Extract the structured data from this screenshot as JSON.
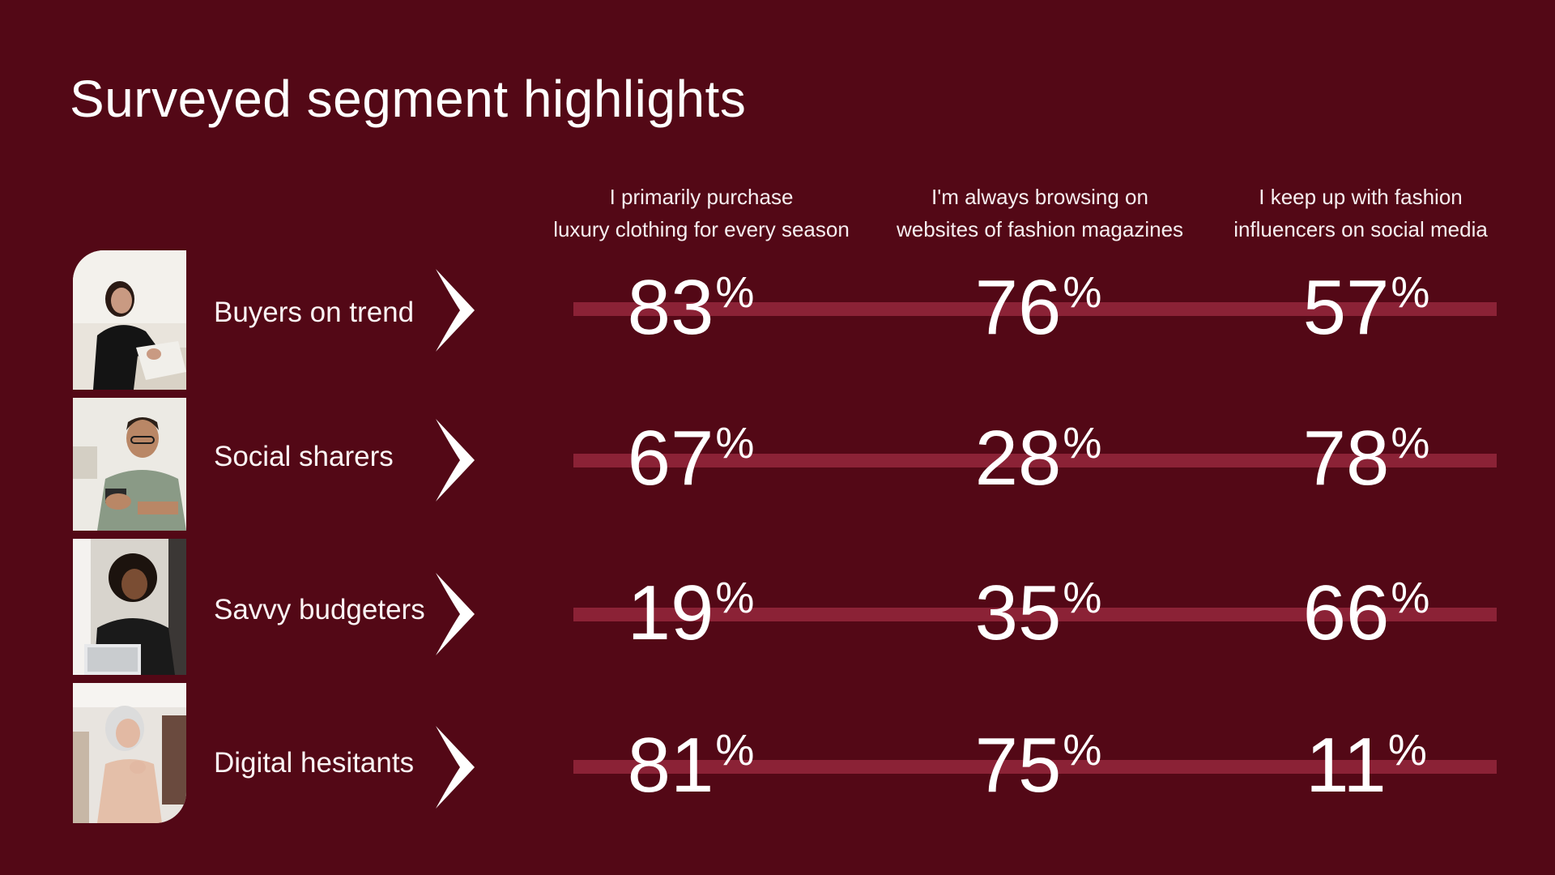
{
  "title": "Surveyed segment highlights",
  "columns": [
    {
      "line1": "I primarily purchase",
      "line2": "luxury clothing for every season"
    },
    {
      "line1": "I'm always browsing on",
      "line2": "websites of fashion magazines"
    },
    {
      "line1": "I keep up with fashion",
      "line2": "influencers on social media"
    }
  ],
  "rows": [
    {
      "label": "Buyers on trend",
      "photo_icon": "woman-sitting-photo",
      "values": [
        "83",
        "76",
        "57"
      ]
    },
    {
      "label": "Social sharers",
      "photo_icon": "man-with-phone-photo",
      "values": [
        "67",
        "28",
        "78"
      ]
    },
    {
      "label": "Savvy budgeters",
      "photo_icon": "woman-with-laptop-photo",
      "values": [
        "19",
        "35",
        "66"
      ]
    },
    {
      "label": "Digital hesitants",
      "photo_icon": "woman-shopping-photo",
      "values": [
        "81",
        "75",
        "11"
      ]
    }
  ],
  "percent_sign": "%",
  "colors": {
    "background": "#530816",
    "bar": "#8b2236",
    "text": "#ffffff"
  }
}
